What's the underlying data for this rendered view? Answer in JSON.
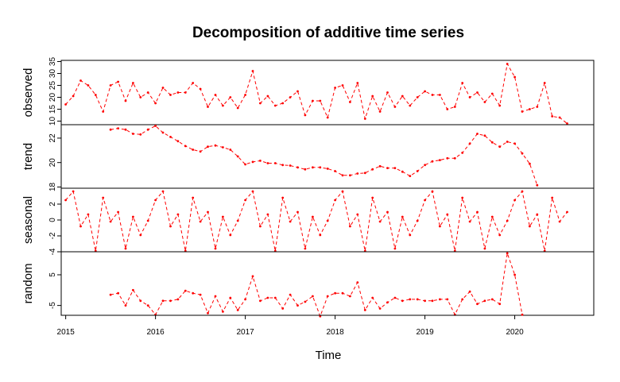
{
  "chart_data": {
    "type": "line",
    "title": "Decomposition of additive time series",
    "xlabel": "Time",
    "frequency": 12,
    "start": [
      2015,
      1
    ],
    "xticks": [
      2015,
      2016,
      2017,
      2018,
      2019,
      2020
    ],
    "xlim": [
      2014.95,
      2020.88
    ],
    "line_style": "dashed",
    "series_color": "#ff0000",
    "panels": [
      {
        "name": "observed",
        "ylim": [
          8.5,
          35.5
        ],
        "yticks": [
          10,
          15,
          20,
          25,
          30,
          35
        ],
        "values": [
          17,
          20.5,
          27,
          25,
          21,
          14,
          25,
          26.5,
          18.5,
          26,
          20,
          22,
          17.5,
          24,
          21,
          22,
          22,
          26,
          23.5,
          16,
          21,
          16.5,
          20,
          15.5,
          21,
          31,
          17.5,
          20.5,
          16.5,
          17.5,
          20,
          22.5,
          12.5,
          18.5,
          18.5,
          11.5,
          24,
          25,
          18,
          26,
          11,
          20.5,
          14,
          22,
          16,
          20.5,
          16.5,
          20,
          22.5,
          21,
          21,
          15,
          16,
          26,
          20,
          22,
          18,
          21.5,
          16.5,
          34,
          28.5,
          14,
          15,
          16,
          26,
          12,
          11.5,
          9
        ]
      },
      {
        "name": "trend",
        "ylim": [
          17.9,
          23.1
        ],
        "yticks": [
          18,
          20,
          22
        ],
        "values": [
          null,
          null,
          null,
          null,
          null,
          null,
          22.7,
          22.8,
          22.7,
          22.35,
          22.3,
          22.7,
          23,
          22.45,
          22.1,
          21.75,
          21.35,
          21.05,
          20.9,
          21.3,
          21.4,
          21.25,
          21.05,
          20.5,
          19.85,
          20.05,
          20.15,
          19.95,
          19.95,
          19.8,
          19.75,
          19.6,
          19.45,
          19.6,
          19.6,
          19.5,
          19.3,
          18.95,
          18.95,
          19.1,
          19.15,
          19.45,
          19.7,
          19.55,
          19.55,
          19.25,
          18.9,
          19.3,
          19.8,
          20.1,
          20.2,
          20.35,
          20.35,
          20.8,
          21.55,
          22.35,
          22.2,
          21.65,
          21.3,
          21.7,
          21.55,
          20.75,
          19.9,
          18.15,
          null,
          null,
          null,
          null,
          null,
          null
        ]
      },
      {
        "name": "seasonal",
        "ylim": [
          -4,
          4
        ],
        "yticks": [
          -4,
          -2,
          0,
          2
        ],
        "values": [
          2.5,
          3.6,
          -0.8,
          0.7,
          -3.9,
          2.8,
          -0.2,
          1.0,
          -3.6,
          0.4,
          -1.9,
          -0.1,
          2.5,
          3.6,
          -0.8,
          0.7,
          -3.9,
          2.8,
          -0.2,
          1.0,
          -3.6,
          0.4,
          -1.9,
          -0.1,
          2.5,
          3.6,
          -0.8,
          0.7,
          -3.9,
          2.8,
          -0.2,
          1.0,
          -3.6,
          0.4,
          -1.9,
          -0.1,
          2.5,
          3.6,
          -0.8,
          0.7,
          -3.9,
          2.8,
          -0.2,
          1.0,
          -3.6,
          0.4,
          -1.9,
          -0.1,
          2.5,
          3.6,
          -0.8,
          0.7,
          -3.9,
          2.8,
          -0.2,
          1.0,
          -3.6,
          0.4,
          -1.9,
          -0.1,
          2.5,
          3.6,
          -0.8,
          0.7,
          -3.9,
          2.8,
          -0.2,
          1.0
        ]
      },
      {
        "name": "random",
        "ylim": [
          -8.2,
          12.5
        ],
        "yticks": [
          -5,
          5
        ],
        "values": [
          null,
          null,
          null,
          null,
          null,
          null,
          -1.5,
          -1,
          -5,
          0,
          -3.5,
          -5,
          -8,
          -3.5,
          -3.5,
          -3,
          -0.2,
          -1,
          -1.5,
          -7.5,
          -2,
          -7,
          -2.5,
          -6.5,
          -3,
          4.5,
          -3.5,
          -2.5,
          -2.5,
          -6,
          -1.5,
          -5,
          -3.8,
          -2,
          -8.5,
          -2,
          -1,
          -1,
          -2,
          2.5,
          -6.5,
          -2.5,
          -6,
          -4,
          -2.5,
          -3.5,
          -3,
          -3,
          -3.5,
          -3.5,
          -3,
          -3,
          -8,
          -3,
          -0.5,
          -4.5,
          -3.5,
          -3,
          -4.5,
          12,
          5,
          -8,
          null,
          null,
          null,
          null,
          null,
          null,
          null,
          null
        ]
      }
    ]
  }
}
